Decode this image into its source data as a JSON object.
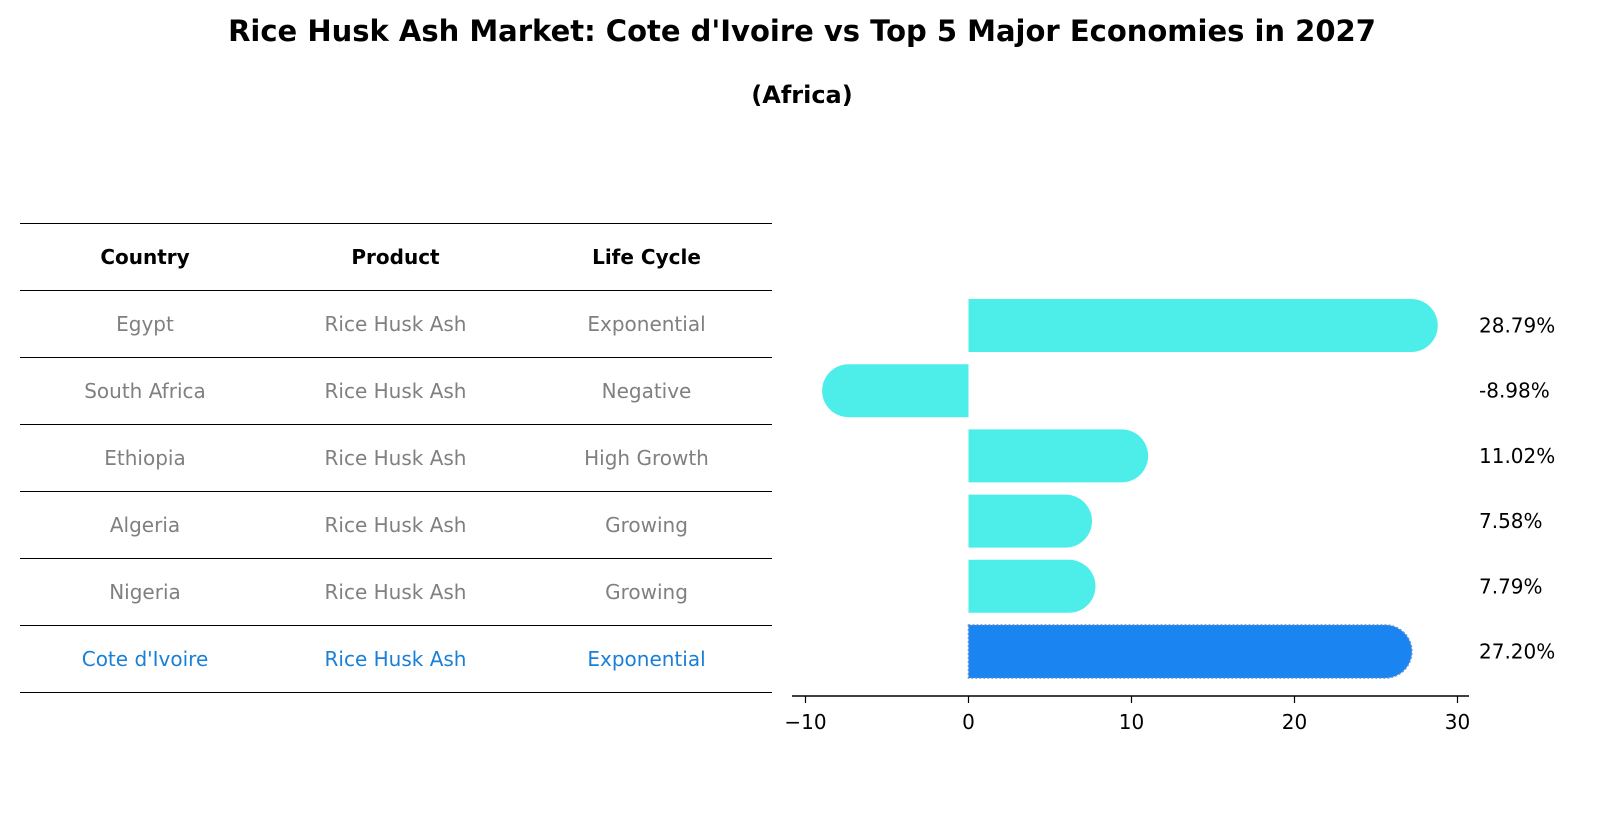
{
  "title": "Rice Husk Ash Market: Cote d'Ivoire vs Top 5 Major Economies in 2027",
  "subtitle": "(Africa)",
  "table": {
    "headers": [
      "Country",
      "Product",
      "Life Cycle"
    ],
    "rows": [
      {
        "country": "Egypt",
        "product": "Rice Husk Ash",
        "life_cycle": "Exponential"
      },
      {
        "country": "South Africa",
        "product": "Rice Husk Ash",
        "life_cycle": "Negative"
      },
      {
        "country": "Ethiopia",
        "product": "Rice Husk Ash",
        "life_cycle": "High Growth"
      },
      {
        "country": "Algeria",
        "product": "Rice Husk Ash",
        "life_cycle": "Growing"
      },
      {
        "country": "Nigeria",
        "product": "Rice Husk Ash",
        "life_cycle": "Growing"
      },
      {
        "country": "Cote d'Ivoire",
        "product": "Rice Husk Ash",
        "life_cycle": "Exponential"
      }
    ]
  },
  "chart_data": {
    "type": "bar",
    "orientation": "horizontal",
    "categories": [
      "Egypt",
      "South Africa",
      "Ethiopia",
      "Algeria",
      "Nigeria",
      "Cote d'Ivoire"
    ],
    "values": [
      28.79,
      -8.98,
      11.02,
      7.58,
      7.79,
      27.2
    ],
    "value_labels": [
      "28.79%",
      "-8.98%",
      "11.02%",
      "7.58%",
      "7.79%",
      "27.20%"
    ],
    "highlight": "Cote d'Ivoire",
    "xlim": [
      -10,
      30
    ],
    "xticks": [
      -10,
      0,
      10,
      20,
      30
    ],
    "xtick_labels": [
      "−10",
      "0",
      "10",
      "20",
      "30"
    ],
    "colors": {
      "default": "#4deeea",
      "highlight": "#1a85f0"
    }
  }
}
